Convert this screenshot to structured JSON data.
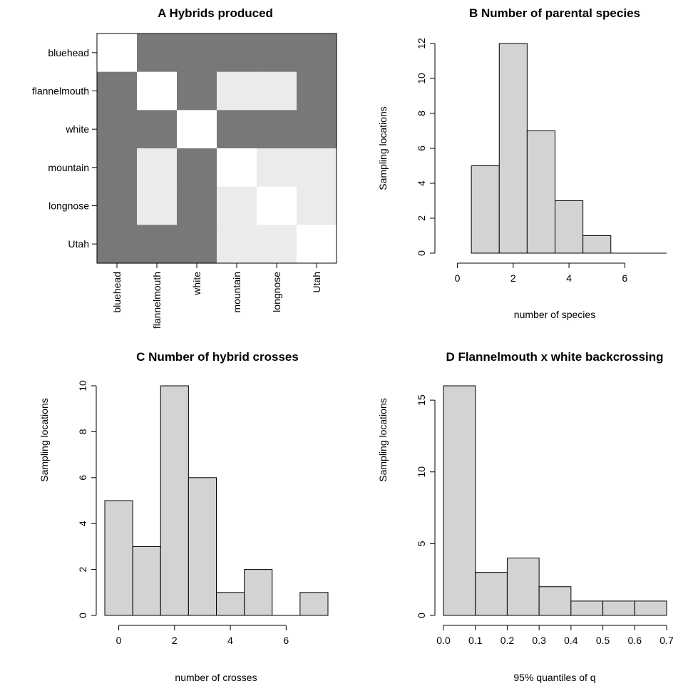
{
  "colors": {
    "dark": "#787878",
    "light": "#ebebeb",
    "diag": "#ffffff",
    "bar": "#d3d3d3",
    "stroke": "#000000"
  },
  "chart_data": [
    {
      "panel": "A",
      "type": "heatmap",
      "title": "A  Hybrids produced",
      "rows": [
        "bluehead",
        "flannelmouth",
        "white",
        "mountain",
        "longnose",
        "Utah"
      ],
      "cols": [
        "bluehead",
        "flannelmouth",
        "white",
        "mountain",
        "longnose",
        "Utah"
      ],
      "matrix": [
        [
          0,
          2,
          2,
          2,
          2,
          2
        ],
        [
          2,
          0,
          2,
          1,
          1,
          2
        ],
        [
          2,
          2,
          0,
          2,
          2,
          2
        ],
        [
          2,
          1,
          2,
          0,
          1,
          1
        ],
        [
          2,
          1,
          2,
          1,
          0,
          1
        ],
        [
          2,
          2,
          2,
          1,
          1,
          0
        ]
      ]
    },
    {
      "panel": "B",
      "type": "bar",
      "title": "B  Number of parental species",
      "xlabel": "number of species",
      "ylabel": "Sampling locations",
      "bins": [
        [
          0.5,
          1.5
        ],
        [
          1.5,
          2.5
        ],
        [
          2.5,
          3.5
        ],
        [
          3.5,
          4.5
        ],
        [
          4.5,
          5.5
        ],
        [
          5.5,
          6.5
        ],
        [
          6.5,
          7.5
        ]
      ],
      "values": [
        5,
        12,
        7,
        3,
        1,
        0,
        0
      ],
      "xlim": [
        -0.5,
        7.5
      ],
      "ylim": [
        0,
        12
      ],
      "xticks": [
        0,
        2,
        4,
        6
      ],
      "yticks": [
        0,
        2,
        4,
        6,
        8,
        10,
        12
      ]
    },
    {
      "panel": "C",
      "type": "bar",
      "title": "C  Number of hybrid crosses",
      "xlabel": "number of crosses",
      "ylabel": "Sampling locations",
      "bins": [
        [
          -0.5,
          0.5
        ],
        [
          0.5,
          1.5
        ],
        [
          1.5,
          2.5
        ],
        [
          2.5,
          3.5
        ],
        [
          3.5,
          4.5
        ],
        [
          4.5,
          5.5
        ],
        [
          5.5,
          6.5
        ],
        [
          6.5,
          7.5
        ]
      ],
      "values": [
        5,
        3,
        10,
        6,
        1,
        2,
        0,
        1
      ],
      "xlim": [
        -0.5,
        7.5
      ],
      "ylim": [
        0,
        10
      ],
      "xticks": [
        0,
        2,
        4,
        6
      ],
      "yticks": [
        0,
        2,
        4,
        6,
        8,
        10
      ]
    },
    {
      "panel": "D",
      "type": "bar",
      "title": "D  Flannelmouth x white backcrossing",
      "xlabel": "95% quantiles of q",
      "ylabel": "Sampling locations",
      "bins": [
        [
          0.0,
          0.1
        ],
        [
          0.1,
          0.2
        ],
        [
          0.2,
          0.3
        ],
        [
          0.3,
          0.4
        ],
        [
          0.4,
          0.5
        ],
        [
          0.5,
          0.6
        ],
        [
          0.6,
          0.7
        ]
      ],
      "values": [
        16,
        3,
        4,
        2,
        1,
        1,
        1
      ],
      "xlim": [
        0,
        0.7
      ],
      "ylim": [
        0,
        16
      ],
      "xticks": [
        "0.0",
        "0.1",
        "0.2",
        "0.3",
        "0.4",
        "0.5",
        "0.6",
        "0.7"
      ],
      "yticks": [
        0,
        5,
        10,
        15
      ]
    }
  ]
}
